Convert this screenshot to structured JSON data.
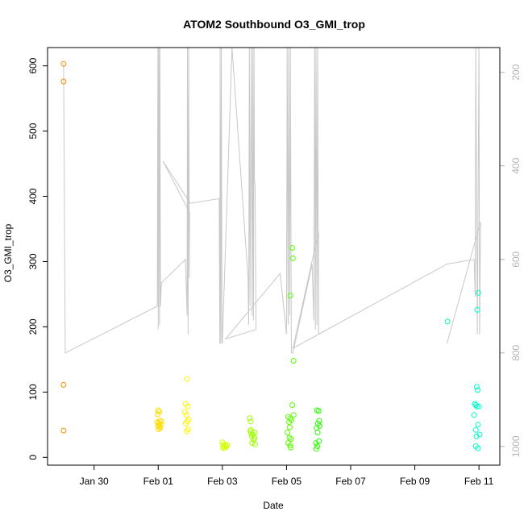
{
  "chart_data": {
    "type": "scatter",
    "title": "ATOM2 Southbound O3_GMI_trop",
    "xlabel": "Date",
    "ylabel": "O3_GMI_trop",
    "x_ticks": [
      "Jan 30",
      "Feb 01",
      "Feb 03",
      "Feb 05",
      "Feb 07",
      "Feb 09",
      "Feb 11"
    ],
    "x_tick_days": [
      0,
      2,
      4,
      6,
      8,
      10,
      12
    ],
    "xlim_days": [
      -1.45,
      12.65
    ],
    "ylim": [
      -12,
      628
    ],
    "y_ticks": [
      0,
      100,
      200,
      300,
      400,
      500,
      600
    ],
    "secondary_axis": {
      "label": "",
      "ticks": [
        200,
        400,
        600,
        800,
        1000
      ],
      "range": [
        147,
        1040
      ],
      "reversed": true,
      "color": "#b3b3b3"
    },
    "point_color_scale": [
      "#ff8c00",
      "#ffff00",
      "#00ff00",
      "#00ffcc"
    ],
    "line_color": "#c8c8c8",
    "points": [
      {
        "x": -0.95,
        "y": 603
      },
      {
        "x": -0.95,
        "y": 576
      },
      {
        "x": -0.95,
        "y": 111
      },
      {
        "x": -0.95,
        "y": 41
      },
      {
        "x": 2.0,
        "y": 72
      },
      {
        "x": 2.03,
        "y": 70
      },
      {
        "x": 1.98,
        "y": 66
      },
      {
        "x": 2.05,
        "y": 56
      },
      {
        "x": 1.97,
        "y": 54
      },
      {
        "x": 2.02,
        "y": 52
      },
      {
        "x": 2.08,
        "y": 50
      },
      {
        "x": 1.99,
        "y": 48
      },
      {
        "x": 2.06,
        "y": 45
      },
      {
        "x": 2.01,
        "y": 43
      },
      {
        "x": 2.1,
        "y": 55
      },
      {
        "x": 2.04,
        "y": 47
      },
      {
        "x": 2.9,
        "y": 120
      },
      {
        "x": 2.85,
        "y": 82
      },
      {
        "x": 2.92,
        "y": 78
      },
      {
        "x": 2.83,
        "y": 69
      },
      {
        "x": 2.88,
        "y": 65
      },
      {
        "x": 2.95,
        "y": 58
      },
      {
        "x": 2.9,
        "y": 55
      },
      {
        "x": 2.86,
        "y": 52
      },
      {
        "x": 2.93,
        "y": 43
      },
      {
        "x": 2.89,
        "y": 40
      },
      {
        "x": 4.0,
        "y": 23
      },
      {
        "x": 4.05,
        "y": 20
      },
      {
        "x": 4.1,
        "y": 18
      },
      {
        "x": 4.02,
        "y": 17
      },
      {
        "x": 4.08,
        "y": 15
      },
      {
        "x": 4.13,
        "y": 16
      },
      {
        "x": 4.03,
        "y": 14
      },
      {
        "x": 4.15,
        "y": 19
      },
      {
        "x": 4.85,
        "y": 60
      },
      {
        "x": 4.88,
        "y": 55
      },
      {
        "x": 4.87,
        "y": 40
      },
      {
        "x": 4.9,
        "y": 37
      },
      {
        "x": 4.95,
        "y": 35
      },
      {
        "x": 4.92,
        "y": 32
      },
      {
        "x": 5.0,
        "y": 30
      },
      {
        "x": 4.98,
        "y": 27
      },
      {
        "x": 4.93,
        "y": 22
      },
      {
        "x": 5.02,
        "y": 20
      },
      {
        "x": 4.89,
        "y": 42
      },
      {
        "x": 5.01,
        "y": 38
      },
      {
        "x": 6.18,
        "y": 321
      },
      {
        "x": 6.2,
        "y": 305
      },
      {
        "x": 6.12,
        "y": 248
      },
      {
        "x": 6.22,
        "y": 148
      },
      {
        "x": 6.18,
        "y": 80
      },
      {
        "x": 6.22,
        "y": 65
      },
      {
        "x": 6.05,
        "y": 62
      },
      {
        "x": 6.12,
        "y": 60
      },
      {
        "x": 6.15,
        "y": 57
      },
      {
        "x": 6.08,
        "y": 54
      },
      {
        "x": 6.1,
        "y": 46
      },
      {
        "x": 6.03,
        "y": 38
      },
      {
        "x": 6.09,
        "y": 30
      },
      {
        "x": 6.14,
        "y": 28
      },
      {
        "x": 6.05,
        "y": 22
      },
      {
        "x": 6.11,
        "y": 18
      },
      {
        "x": 6.13,
        "y": 15
      },
      {
        "x": 6.95,
        "y": 72
      },
      {
        "x": 7.0,
        "y": 71
      },
      {
        "x": 7.02,
        "y": 56
      },
      {
        "x": 6.98,
        "y": 52
      },
      {
        "x": 7.03,
        "y": 48
      },
      {
        "x": 6.94,
        "y": 45
      },
      {
        "x": 6.97,
        "y": 38
      },
      {
        "x": 7.01,
        "y": 25
      },
      {
        "x": 6.92,
        "y": 22
      },
      {
        "x": 6.96,
        "y": 17
      },
      {
        "x": 6.93,
        "y": 13
      },
      {
        "x": 11.02,
        "y": 208
      },
      {
        "x": 11.98,
        "y": 252
      },
      {
        "x": 11.95,
        "y": 226
      },
      {
        "x": 11.93,
        "y": 108
      },
      {
        "x": 11.96,
        "y": 103
      },
      {
        "x": 11.87,
        "y": 82
      },
      {
        "x": 11.9,
        "y": 80
      },
      {
        "x": 11.93,
        "y": 78
      },
      {
        "x": 12.0,
        "y": 78
      },
      {
        "x": 11.85,
        "y": 65
      },
      {
        "x": 11.97,
        "y": 50
      },
      {
        "x": 11.9,
        "y": 42
      },
      {
        "x": 12.02,
        "y": 35
      },
      {
        "x": 11.92,
        "y": 32
      },
      {
        "x": 11.9,
        "y": 17
      },
      {
        "x": 11.97,
        "y": 14
      }
    ],
    "flight_track_pressure": [
      [
        -0.95,
        180
      ],
      [
        -0.9,
        800
      ],
      [
        1.97,
        700
      ],
      [
        1.99,
        147
      ],
      [
        2.0,
        750
      ],
      [
        2.02,
        147
      ],
      [
        2.04,
        740
      ],
      [
        2.05,
        147
      ],
      [
        2.07,
        700
      ],
      [
        2.1,
        650
      ],
      [
        2.85,
        600
      ],
      [
        2.9,
        720
      ],
      [
        2.91,
        147
      ],
      [
        2.93,
        760
      ],
      [
        2.95,
        147
      ],
      [
        2.97,
        640
      ],
      [
        2.98,
        500
      ],
      [
        2.15,
        390
      ],
      [
        3.0,
        480
      ],
      [
        3.9,
        470
      ],
      [
        3.92,
        780
      ],
      [
        3.93,
        147
      ],
      [
        3.95,
        780
      ],
      [
        3.97,
        147
      ],
      [
        3.99,
        770
      ],
      [
        4.0,
        780
      ],
      [
        4.3,
        147
      ],
      [
        4.8,
        640
      ],
      [
        4.82,
        740
      ],
      [
        4.84,
        147
      ],
      [
        4.86,
        700
      ],
      [
        4.9,
        147
      ],
      [
        4.93,
        720
      ],
      [
        4.95,
        147
      ],
      [
        4.97,
        730
      ],
      [
        4.99,
        147
      ],
      [
        5.0,
        430
      ],
      [
        5.02,
        440
      ],
      [
        5.05,
        750
      ],
      [
        4.1,
        770
      ],
      [
        5.8,
        630
      ],
      [
        6.0,
        760
      ],
      [
        6.02,
        147
      ],
      [
        6.05,
        740
      ],
      [
        6.07,
        147
      ],
      [
        6.1,
        720
      ],
      [
        6.12,
        147
      ],
      [
        6.15,
        800
      ],
      [
        6.2,
        800
      ],
      [
        6.8,
        610
      ],
      [
        6.85,
        730
      ],
      [
        6.88,
        147
      ],
      [
        6.9,
        750
      ],
      [
        6.92,
        147
      ],
      [
        6.95,
        740
      ],
      [
        6.97,
        147
      ],
      [
        7.0,
        760
      ],
      [
        7.0,
        540
      ],
      [
        6.2,
        790
      ],
      [
        11.0,
        610
      ],
      [
        11.85,
        600
      ],
      [
        11.88,
        680
      ],
      [
        11.9,
        147
      ],
      [
        11.95,
        760
      ],
      [
        12.0,
        147
      ],
      [
        12.02,
        760
      ],
      [
        12.05,
        520
      ],
      [
        11.0,
        780
      ]
    ]
  }
}
